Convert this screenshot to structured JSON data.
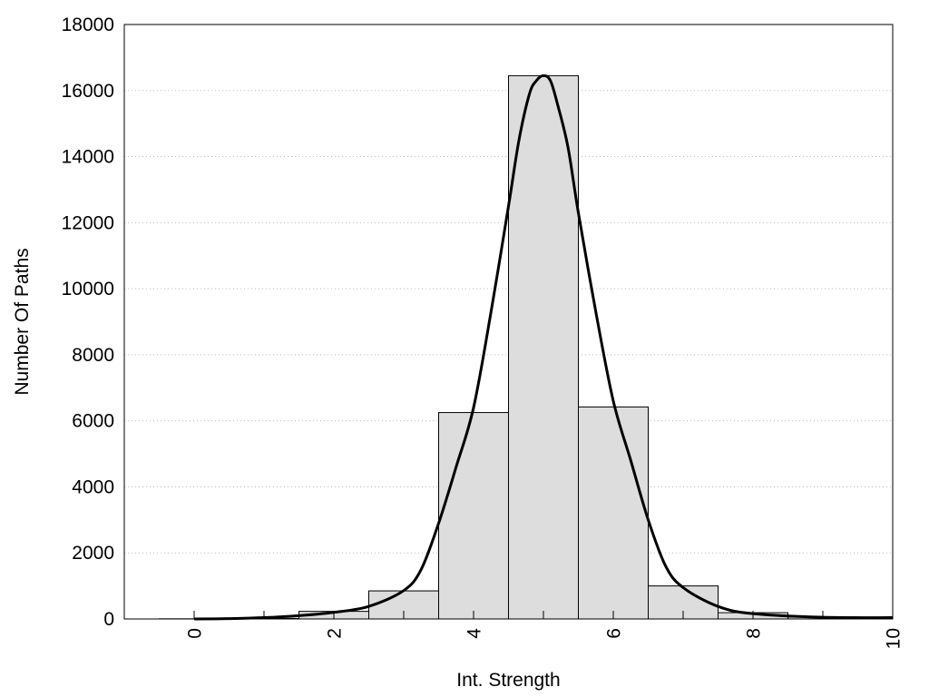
{
  "chart_data": {
    "type": "bar",
    "title": "",
    "xlabel": "Int. Strength",
    "ylabel": "Number Of Paths",
    "xlim": [
      -1,
      10
    ],
    "ylim": [
      0,
      18000
    ],
    "grid": "horizontal dotted",
    "legend": "none",
    "x_ticks": [
      "0",
      "2",
      "4",
      "6",
      "8",
      "10"
    ],
    "y_ticks": [
      "0",
      "2000",
      "4000",
      "6000",
      "8000",
      "10000",
      "12000",
      "14000",
      "16000",
      "18000"
    ],
    "bars": {
      "name": "",
      "width": 1,
      "x": [
        0,
        1,
        2,
        3,
        4,
        5,
        6,
        7,
        8,
        9,
        10
      ],
      "values": [
        5,
        15,
        230,
        850,
        6250,
        16450,
        6420,
        1000,
        190,
        60,
        30
      ],
      "color": "#dddddd"
    },
    "fit_curve": {
      "name": "",
      "color": "#000000",
      "x": [
        0,
        0.5,
        1,
        1.5,
        2,
        2.5,
        3,
        3.25,
        3.5,
        3.75,
        4,
        4.25,
        4.5,
        4.65,
        4.8,
        4.9,
        5,
        5.1,
        5.2,
        5.35,
        5.5,
        5.75,
        6,
        6.25,
        6.5,
        6.75,
        7,
        7.5,
        8,
        9,
        10
      ],
      "y": [
        0,
        10,
        40,
        100,
        200,
        380,
        860,
        1500,
        2900,
        4600,
        6400,
        9300,
        12500,
        14500,
        15900,
        16300,
        16450,
        16300,
        15600,
        14300,
        12300,
        9300,
        6600,
        4800,
        3000,
        1600,
        950,
        380,
        160,
        50,
        40
      ]
    }
  }
}
